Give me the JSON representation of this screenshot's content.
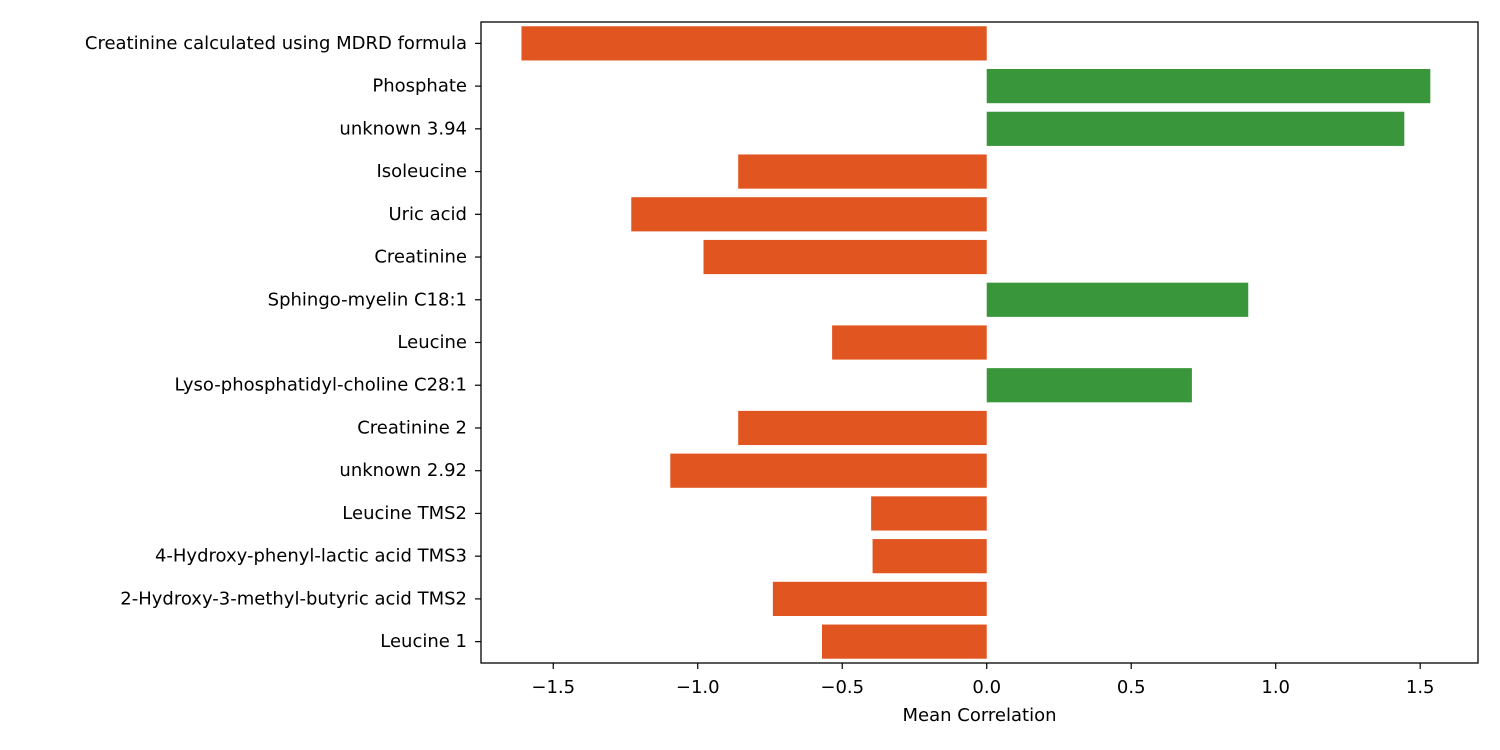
{
  "chart_data": {
    "type": "bar",
    "orientation": "horizontal",
    "categories": [
      "Creatinine calculated using MDRD formula",
      "Phosphate",
      "unknown 3.94",
      "Isoleucine",
      "Uric acid",
      "Creatinine",
      "Sphingo-myelin C18:1",
      "Leucine",
      "Lyso-phosphatidyl-choline C28:1",
      "Creatinine 2",
      "unknown 2.92",
      "Leucine TMS2",
      "4-Hydroxy-phenyl-lactic acid TMS3",
      "2-Hydroxy-3-methyl-butyric acid TMS2",
      "Leucine 1"
    ],
    "values": [
      -1.61,
      1.535,
      1.445,
      -0.86,
      -1.23,
      -0.98,
      0.905,
      -0.535,
      0.71,
      -0.86,
      -1.095,
      -0.4,
      -0.395,
      -0.74,
      -0.57
    ],
    "xlabel": "Mean Correlation",
    "ylabel": "",
    "xlim": [
      -1.75,
      1.7
    ],
    "xticks": [
      -1.5,
      -1.0,
      -0.5,
      0.0,
      0.5,
      1.0,
      1.5
    ],
    "xtick_labels": [
      "−1.5",
      "−1.0",
      "−0.5",
      "0.0",
      "0.5",
      "1.0",
      "1.5"
    ],
    "grid": false,
    "legend": "none",
    "colors": {
      "negative": "#e15521",
      "positive": "#3a963a"
    }
  }
}
